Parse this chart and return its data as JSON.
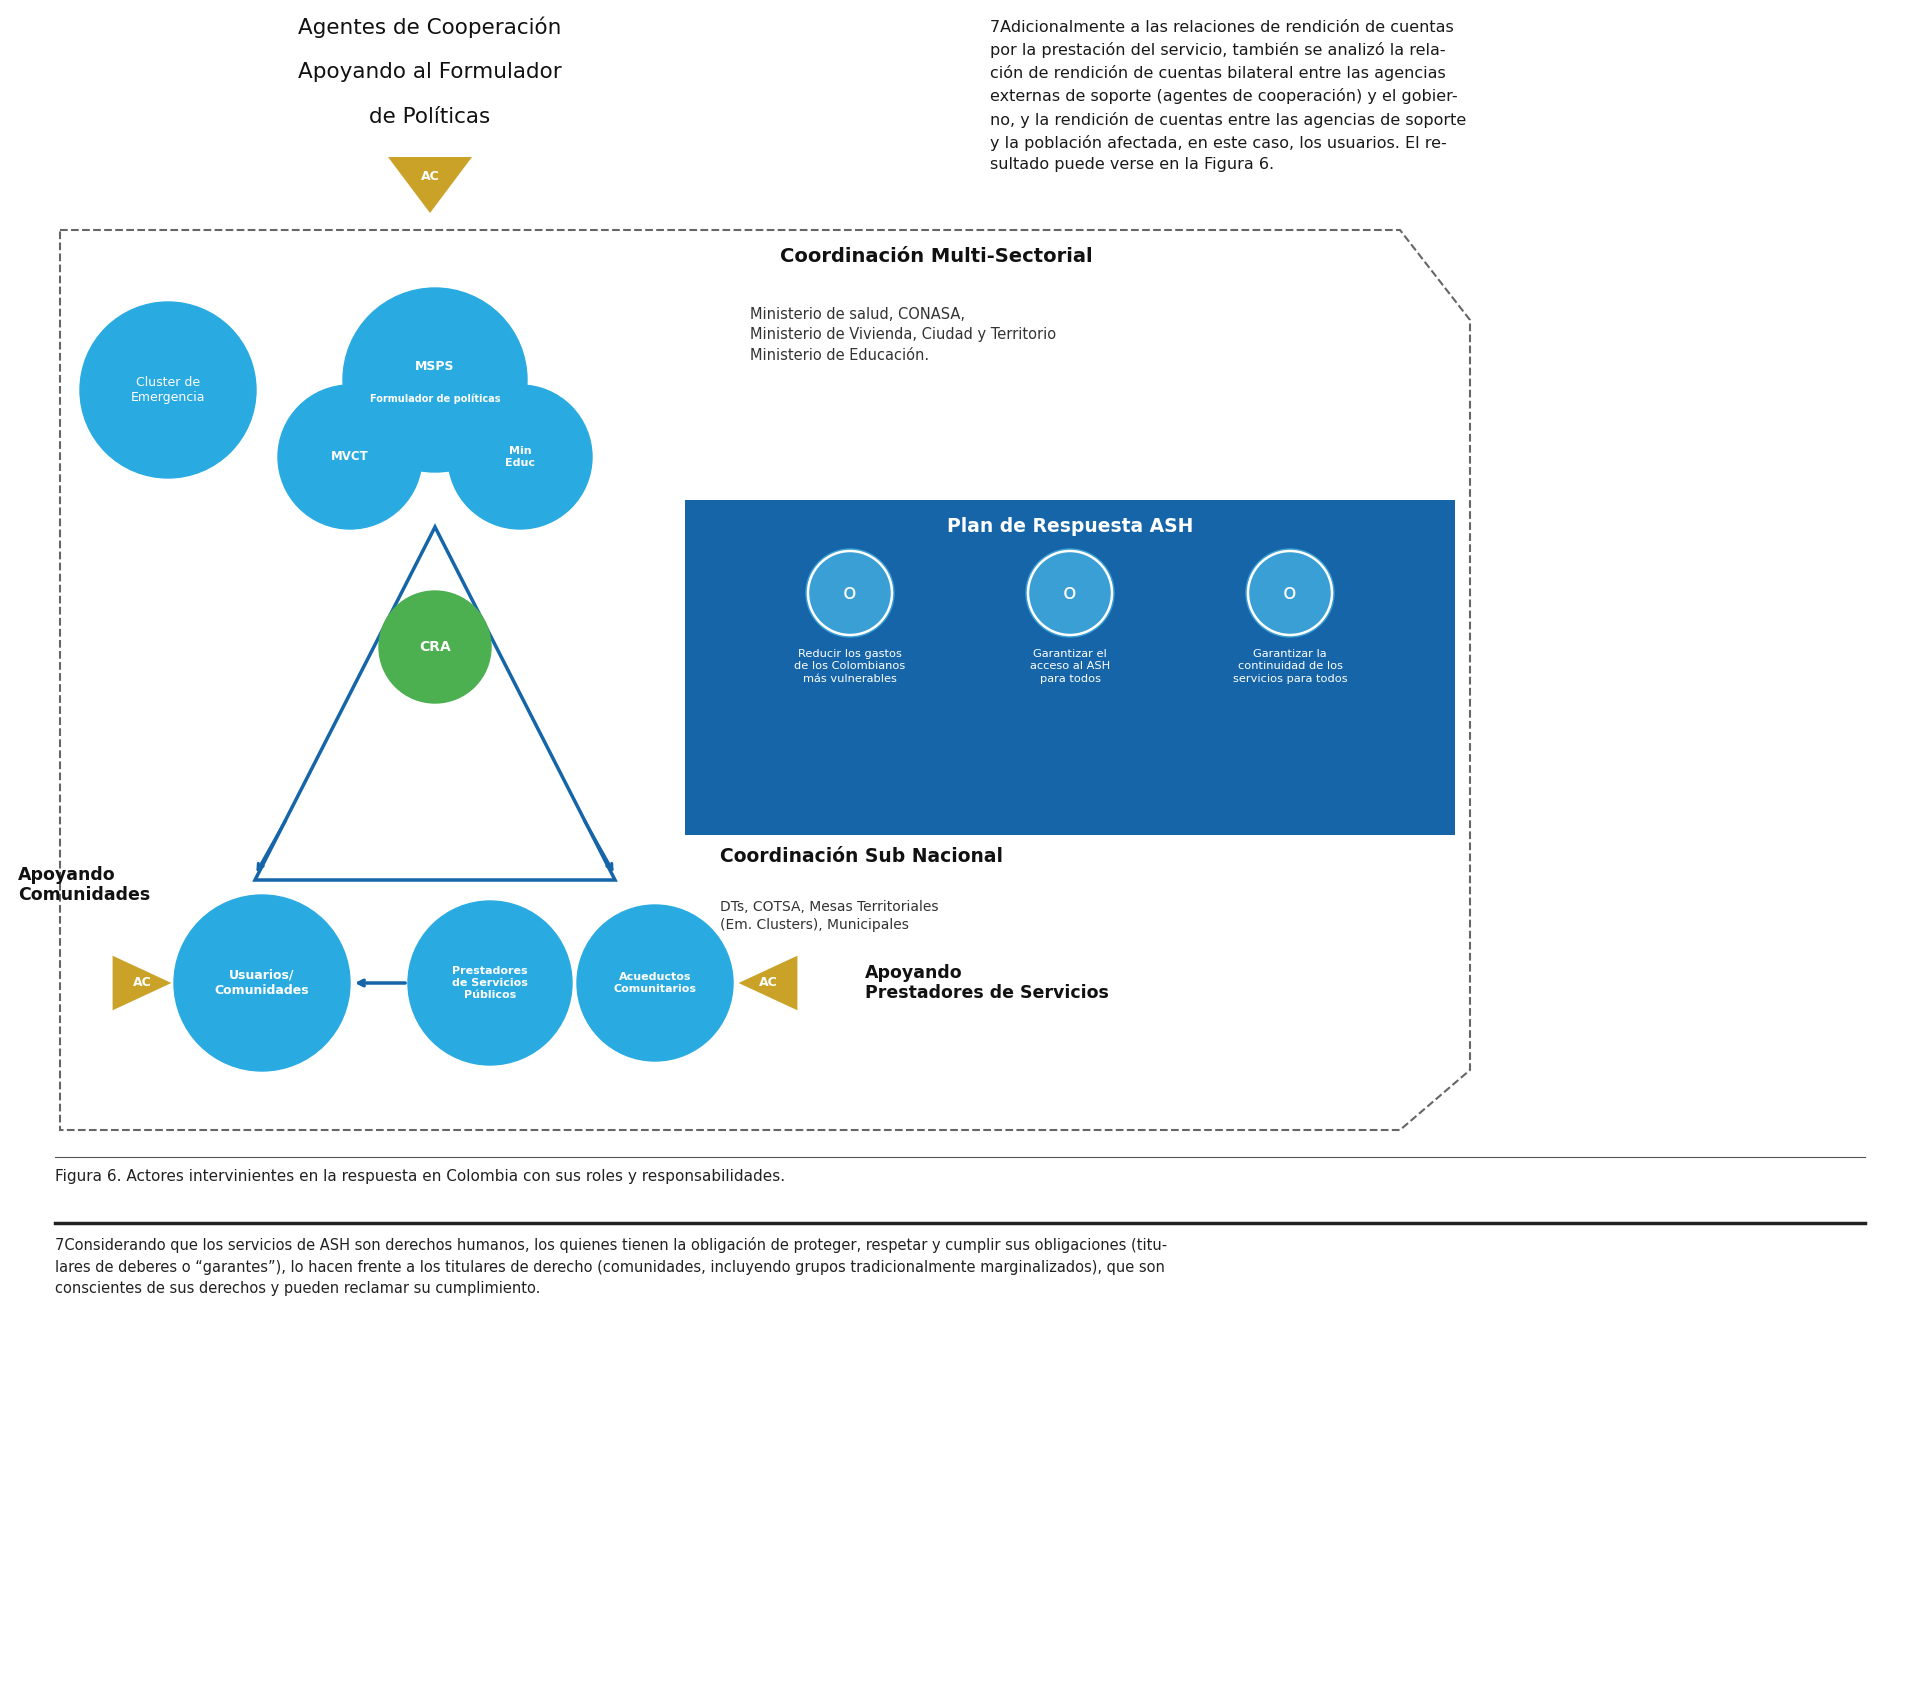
{
  "bg_color": "#ffffff",
  "top_text": "7Adicionalmente a las relaciones de rendición de cuentas\npor la prestación del servicio, también se analizó la rela-\nción de rendición de cuentas bilateral entre las agencias\nexternas de soporte (agentes de cooperación) y el gobier-\nno, y la rendición de cuentas entre las agencias de soporte\ny la población afectada, en este caso, los usuarios. El re-\nsultado puede verse en la Figura 6.",
  "title_line1": "Agentes de Cooperación",
  "title_line2": "Apoyando al Formulador",
  "title_line3": "de Políticas",
  "blue": "#29abe2",
  "dark_blue": "#1565a8",
  "gold": "#c9a227",
  "green": "#4caf50",
  "coord_multi_title": "Coordinación Multi-Sectorial",
  "coord_multi_body": "Ministerio de salud, CONASA,\nMinisterio de Vivienda, Ciudad y Territorio\nMinisterio de Educación.",
  "plan_title": "Plan de Respuesta ASH",
  "plan_item1": "Reducir los gastos\nde los Colombianos\nmás vulnerables",
  "plan_item2": "Garantizar el\nacceso al ASH\npara todos",
  "plan_item3": "Garantizar la\ncontinuidad de los\nservicios para todos",
  "coord_sub_title": "Coordinación Sub Nacional",
  "coord_sub_body": "DTs, COTSA, Mesas Territoriales\n(Em. Clusters), Municipales",
  "label_apoyando_com": "Apoyando\nComunidades",
  "label_apoyando_prest": "Apoyando\nPrestadores de Servicios",
  "label_cluster": "Cluster de\nEmergencia",
  "label_msps1": "MSPS",
  "label_msps2": "Formulador de políticas",
  "label_mvct": "MVCT",
  "label_min_educ": "Min\nEduc",
  "label_cra": "CRA",
  "label_usuarios": "Usuarios/\nComunidades",
  "label_prestadores": "Prestadores\nde Servicios\nPúblicos",
  "label_acueductos": "Acueductos\nComunitarios",
  "label_ac": "AC",
  "figura_caption": "Figura 6. Actores intervinientes en la respuesta en Colombia con sus roles y responsabilidades.",
  "footnote": "7Considerando que los servicios de ASH son derechos humanos, los quienes tienen la obligación de proteger, respetar y cumplir sus obligaciones (titu-\nlares de deberes o “garantes”), lo hacen frente a los titulares de derecho (comunidades, incluyendo grupos tradicionalmente marginalizados), que son\nconscientes de sus derechos y pueden reclamar su cumplimiento."
}
